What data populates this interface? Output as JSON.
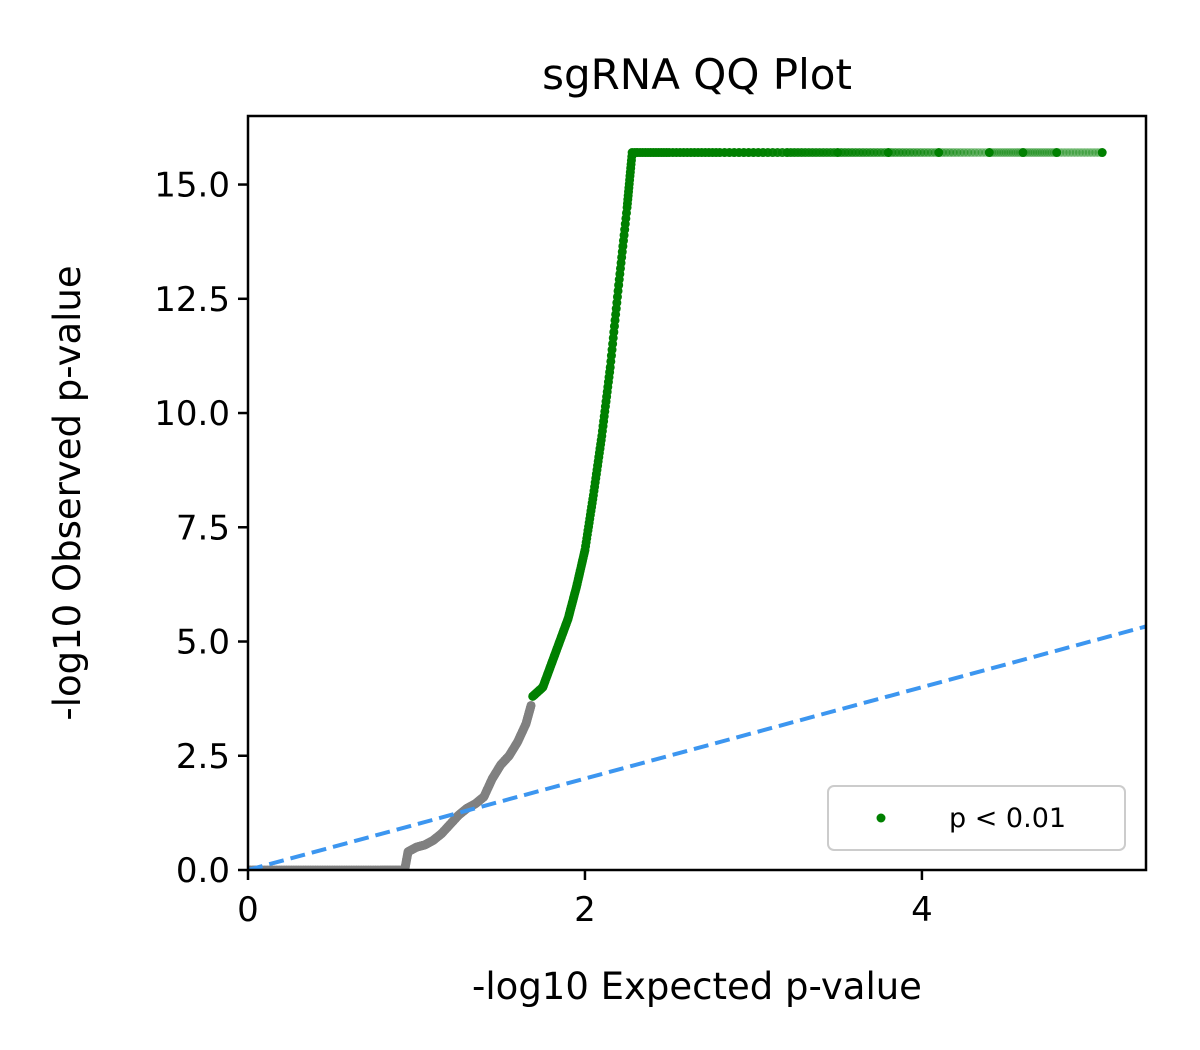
{
  "chart_data": {
    "type": "scatter",
    "title": "sgRNA QQ Plot",
    "xlabel": "-log10 Expected p-value",
    "ylabel": "-log10 Observed p-value",
    "xlim": [
      0,
      5.33
    ],
    "ylim": [
      0,
      16.5
    ],
    "xticks": [
      0,
      2,
      4
    ],
    "xtick_labels": [
      "0",
      "2",
      "4"
    ],
    "yticks": [
      0,
      2.5,
      5,
      7.5,
      10,
      12.5,
      15
    ],
    "ytick_labels": [
      "0.0",
      "2.5",
      "5.0",
      "7.5",
      "10.0",
      "12.5",
      "15.0"
    ],
    "grid": false,
    "legend_position": "lower-right",
    "reference_line": {
      "style": "dashed",
      "color": "#3c96f0",
      "points": [
        [
          0,
          0
        ],
        [
          5.33,
          5.33
        ]
      ]
    },
    "series": [
      {
        "name": "",
        "color": "#808080",
        "description_role": "not significant",
        "points": [
          [
            0.0,
            0.0
          ],
          [
            0.2,
            0.0
          ],
          [
            0.4,
            0.0
          ],
          [
            0.6,
            0.0
          ],
          [
            0.8,
            0.0
          ],
          [
            0.93,
            0.0
          ],
          [
            0.95,
            0.4
          ],
          [
            1.0,
            0.5
          ],
          [
            1.05,
            0.55
          ],
          [
            1.1,
            0.65
          ],
          [
            1.15,
            0.8
          ],
          [
            1.2,
            1.0
          ],
          [
            1.25,
            1.2
          ],
          [
            1.3,
            1.35
          ],
          [
            1.35,
            1.45
          ],
          [
            1.4,
            1.6
          ],
          [
            1.45,
            2.0
          ],
          [
            1.5,
            2.3
          ],
          [
            1.55,
            2.5
          ],
          [
            1.6,
            2.8
          ],
          [
            1.65,
            3.2
          ],
          [
            1.68,
            3.6
          ]
        ]
      },
      {
        "name": "p < 0.01",
        "color": "#008000",
        "points": [
          [
            1.69,
            3.8
          ],
          [
            1.75,
            4.0
          ],
          [
            1.8,
            4.5
          ],
          [
            1.85,
            5.0
          ],
          [
            1.9,
            5.5
          ],
          [
            1.95,
            6.2
          ],
          [
            2.0,
            7.0
          ],
          [
            2.05,
            8.2
          ],
          [
            2.1,
            9.5
          ],
          [
            2.15,
            11.0
          ],
          [
            2.2,
            12.8
          ],
          [
            2.25,
            14.5
          ],
          [
            2.28,
            15.7
          ],
          [
            2.5,
            15.7
          ],
          [
            2.8,
            15.7
          ],
          [
            3.2,
            15.7
          ],
          [
            3.5,
            15.7
          ],
          [
            3.8,
            15.7
          ],
          [
            4.1,
            15.7
          ],
          [
            4.4,
            15.7
          ],
          [
            4.6,
            15.7
          ],
          [
            4.8,
            15.7
          ],
          [
            5.07,
            15.7
          ]
        ]
      }
    ]
  }
}
